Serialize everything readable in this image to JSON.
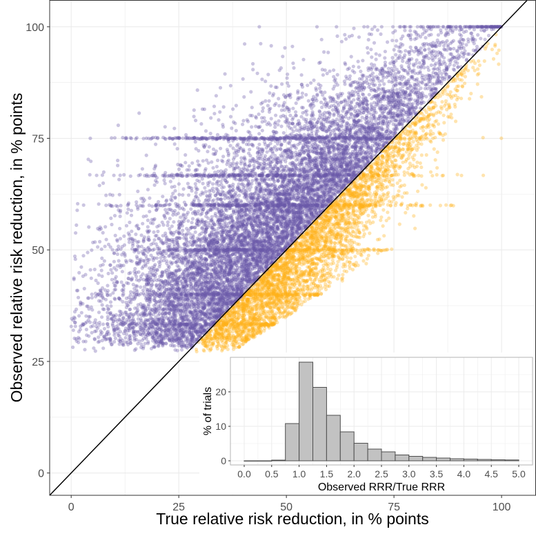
{
  "chart_data": [
    {
      "id": "main",
      "type": "scatter",
      "xlabel": "True relative risk reduction, in % points",
      "ylabel": "Observed relative risk reduction, in % points",
      "xlim": [
        -5,
        108
      ],
      "ylim": [
        -5,
        106
      ],
      "xticks": [
        0,
        25,
        50,
        75,
        100
      ],
      "yticks": [
        0,
        25,
        50,
        75,
        100
      ],
      "grid": true,
      "reference_line": {
        "type": "identity",
        "label": "y = x",
        "color": "#000000"
      },
      "series": [
        {
          "name": "observed above true",
          "color": "#6959A8",
          "rule": "observed >= true"
        },
        {
          "name": "observed below true",
          "color": "#FFB31A",
          "rule": "observed < true"
        }
      ],
      "simulation": {
        "n_points": 14000,
        "observed_min": 27,
        "observed_max": 100,
        "point_alpha": 0.35
      }
    },
    {
      "id": "inset",
      "type": "bar",
      "xlabel": "Observed RRR/True RRR",
      "ylabel": "% of trials",
      "xlim": [
        0,
        5
      ],
      "ylim": [
        0,
        30
      ],
      "xticks": [
        "0.0",
        "0.5",
        "1.0",
        "1.5",
        "2.0",
        "2.5",
        "3.0",
        "3.5",
        "4.0",
        "4.5",
        "5.0"
      ],
      "yticks": [
        0,
        10,
        20
      ],
      "bin_width": 0.25,
      "bin_starts": [
        0,
        0.25,
        0.5,
        0.75,
        1.0,
        1.25,
        1.5,
        1.75,
        2.0,
        2.25,
        2.5,
        2.75,
        3.0,
        3.25,
        3.5,
        3.75,
        4.0,
        4.25,
        4.5,
        4.75
      ],
      "values": [
        0,
        0,
        0.2,
        10.8,
        28.6,
        21.3,
        13.2,
        8.4,
        5.1,
        3.4,
        2.6,
        1.7,
        1.3,
        1.0,
        0.8,
        0.6,
        0.5,
        0.4,
        0.3,
        0.25
      ],
      "bar_fill": "#C2C2C2",
      "bar_stroke": "#4D4D4D"
    }
  ]
}
